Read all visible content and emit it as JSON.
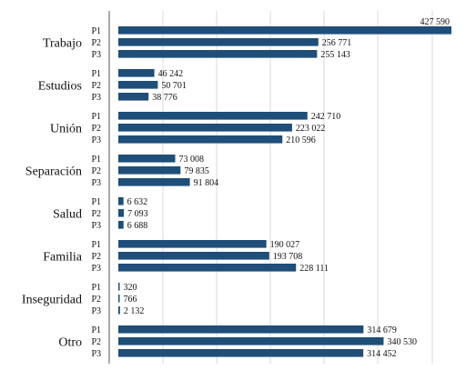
{
  "chart_data": {
    "type": "bar",
    "orientation": "horizontal",
    "title": "",
    "xlabel": "",
    "ylabel": "",
    "categories": [
      "Trabajo",
      "Estudios",
      "Unión",
      "Separación",
      "Salud",
      "Familia",
      "Inseguridad",
      "Otro"
    ],
    "series": [
      {
        "label": "P1",
        "values": [
          427590,
          46242,
          242710,
          73008,
          6632,
          190027,
          320,
          314679
        ]
      },
      {
        "label": "P2",
        "values": [
          256771,
          50701,
          223022,
          79835,
          7093,
          193708,
          766,
          340530
        ]
      },
      {
        "label": "P3",
        "values": [
          255143,
          38776,
          210596,
          91804,
          6688,
          228111,
          2132,
          314452
        ]
      }
    ],
    "value_labels": {
      "P1": [
        "427 590",
        "46 242",
        "242 710",
        "73 008",
        "6 632",
        "190 027",
        "320",
        "314 679"
      ],
      "P2": [
        "256 771",
        "50 701",
        "223 022",
        "79 835",
        "7 093",
        "193 708",
        "766",
        "340 530"
      ],
      "P3": [
        "255 143",
        "38 776",
        "210 596",
        "91 804",
        "6 688",
        "228 111",
        "2 132",
        "314 452"
      ]
    },
    "xlim": [
      0,
      450000
    ],
    "grid": true,
    "bar_color": "#1f4e79"
  }
}
